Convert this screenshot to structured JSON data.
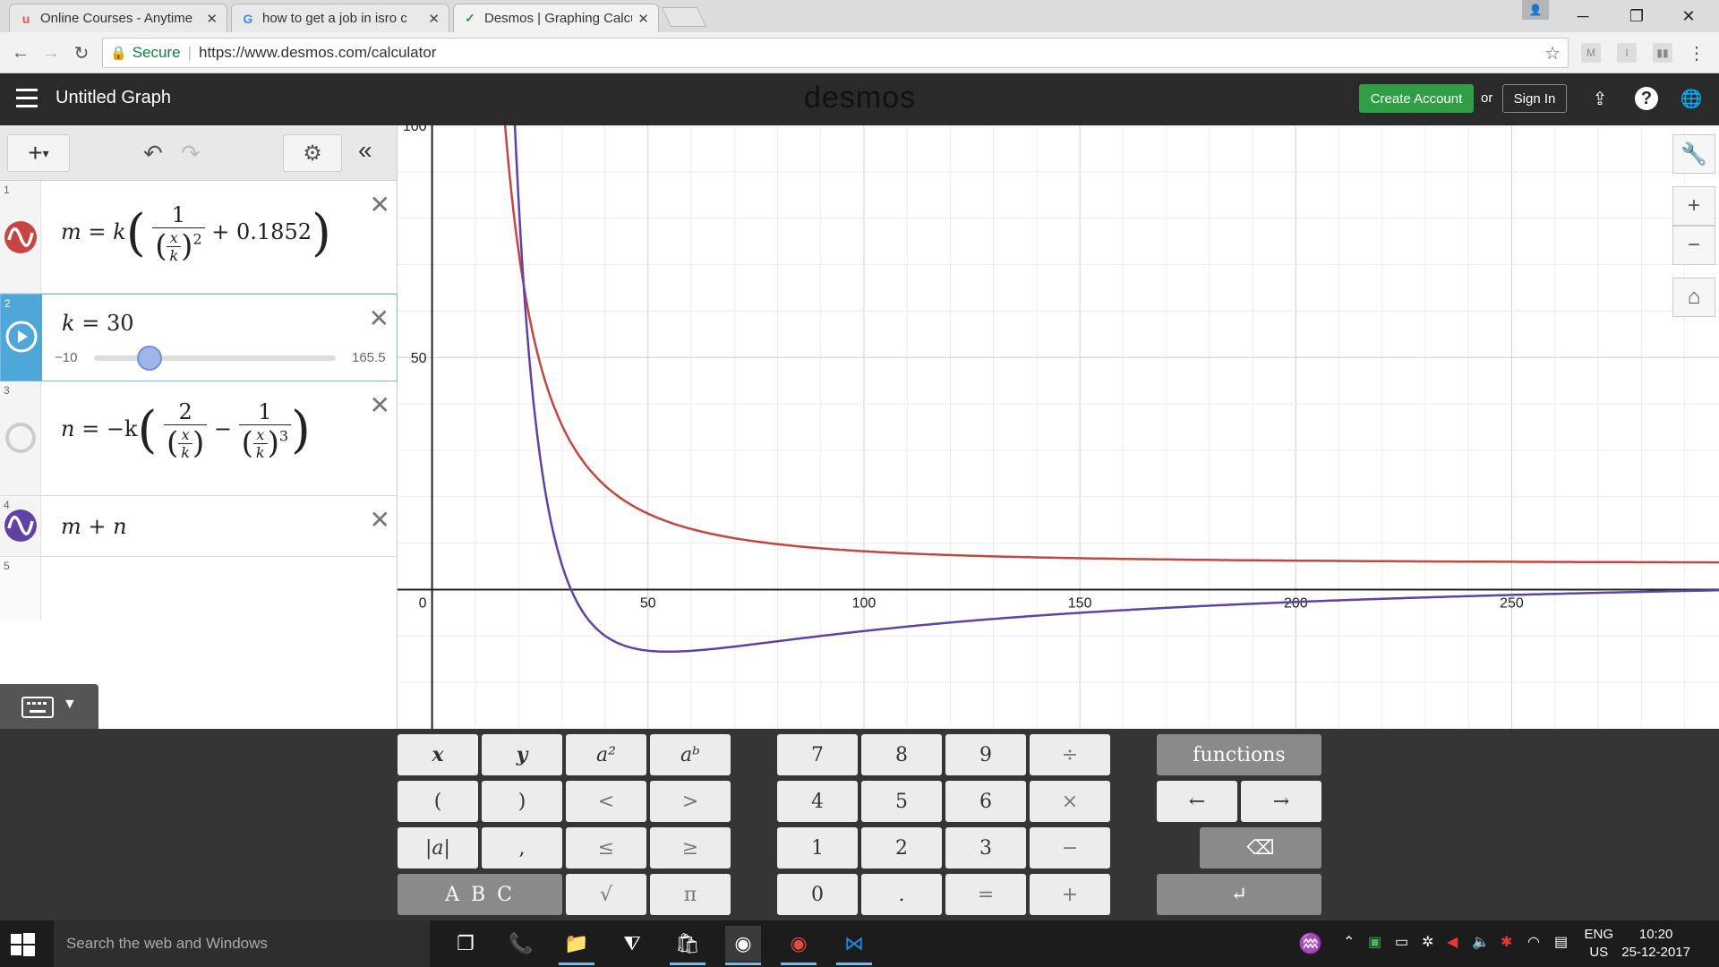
{
  "tabs": [
    {
      "title": "Online Courses - Anytime",
      "icon": "udemy-icon",
      "color": "#ec5252"
    },
    {
      "title": "how to get a job in isro c",
      "icon": "google-icon",
      "color": "#4285f4"
    },
    {
      "title": "Desmos | Graphing Calcu",
      "icon": "desmos-icon",
      "color": "#2f9e44"
    }
  ],
  "omnibox": {
    "secure_label": "Secure",
    "url": "https://www.desmos.com/calculator"
  },
  "header": {
    "title": "Untitled Graph",
    "logo": "desmos",
    "create_label": "Create Account",
    "or_label": "or",
    "signin_label": "Sign In"
  },
  "expressions": [
    {
      "num": "1",
      "color": "#c74440"
    },
    {
      "num": "2",
      "color": "#2d70b3",
      "lhs": "k",
      "value": "30",
      "min": "−10",
      "max": "165.5",
      "slider_fraction": 0.228
    },
    {
      "num": "3",
      "color": "#cccccc"
    },
    {
      "num": "4",
      "color": "#6042a6",
      "text": "m + n"
    },
    {
      "num": "5"
    }
  ],
  "expr1": {
    "lhs": "m",
    "eq": "=",
    "k": "k",
    "one": "1",
    "x": "x",
    "kk": "k",
    "pow": "2",
    "plus": "+ 0.1852"
  },
  "expr3": {
    "lhs": "n",
    "eq": "= −k",
    "two": "2",
    "one": "1",
    "x": "x",
    "kk": "k",
    "minus": "−",
    "pow": "3"
  },
  "chart_data": {
    "type": "line",
    "xlim": [
      -8,
      298
    ],
    "ylim": [
      -30,
      100
    ],
    "x_ticks": [
      "50",
      "100",
      "150",
      "200",
      "250"
    ],
    "y_ticks": [
      "100",
      "50",
      "0"
    ],
    "grid": true,
    "series": [
      {
        "color": "#c74440",
        "expression": "m",
        "k": 30
      },
      {
        "color": "#6042a6",
        "expression": "m + n",
        "k": 30
      }
    ]
  },
  "keypad": {
    "row1": [
      "x",
      "y",
      "a²",
      "aᵇ",
      "7",
      "8",
      "9",
      "÷",
      "functions"
    ],
    "row2": [
      "(",
      ")",
      "<",
      ">",
      "4",
      "5",
      "6",
      "×",
      "←",
      "→"
    ],
    "row3": [
      "|a|",
      ",",
      "≤",
      "≥",
      "1",
      "2",
      "3",
      "−",
      "⌫"
    ],
    "row4": [
      "A B C",
      "√",
      "π",
      "0",
      ".",
      "=",
      "+",
      "↵"
    ]
  },
  "taskbar": {
    "search_placeholder": "Search the web and Windows",
    "lang": "ENG",
    "region": "US",
    "time": "10:20",
    "date": "25-12-2017"
  },
  "extensions": [
    "M",
    "I"
  ]
}
